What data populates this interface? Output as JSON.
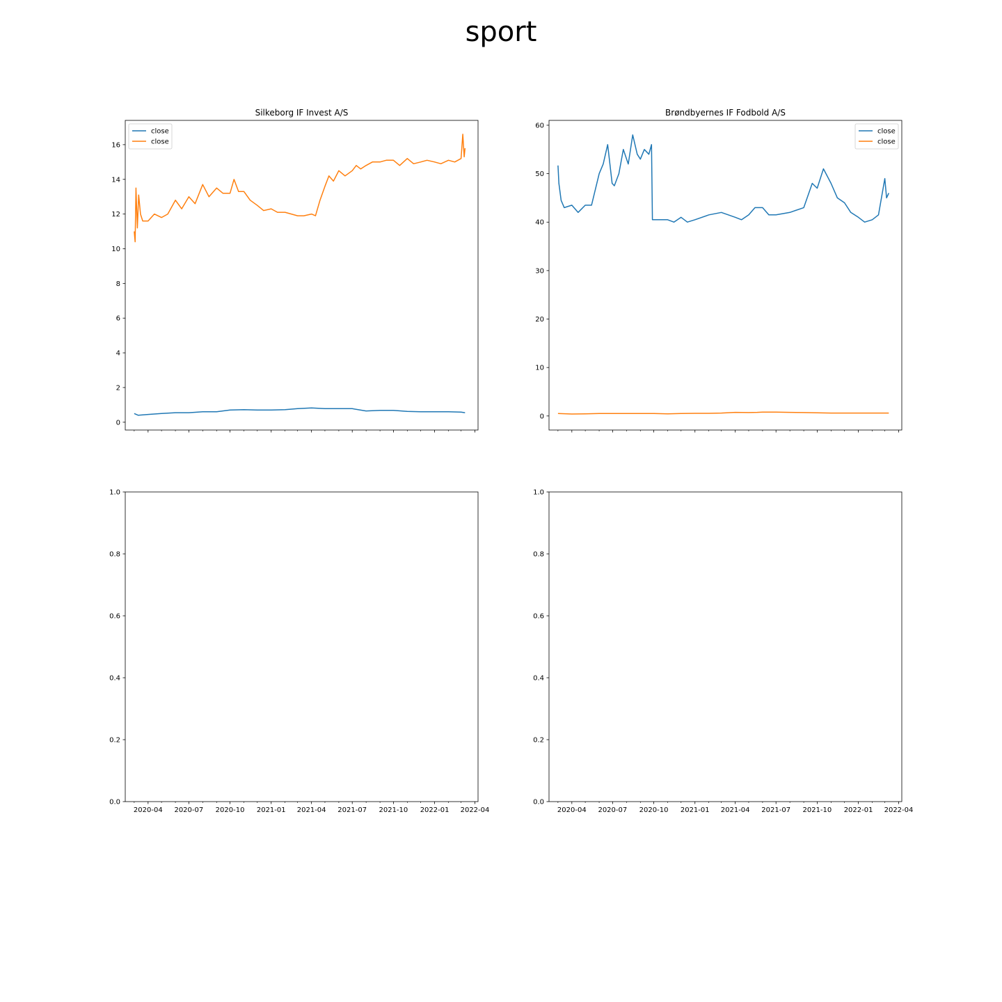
{
  "figure": {
    "title": "sport"
  },
  "colors": {
    "series_blue": "#1f77b4",
    "series_orange": "#ff7f0e"
  },
  "chart_data": [
    {
      "type": "line",
      "title": "Silkeborg IF Invest A/S",
      "legend": "top-left",
      "grid": false,
      "xlim": [
        "2020-02-10",
        "2022-04-08"
      ],
      "ylim": [
        -0.45,
        17.4
      ],
      "yticks": [
        0,
        2,
        4,
        6,
        8,
        10,
        12,
        14,
        16
      ],
      "show_xtick_labels": false,
      "series": [
        {
          "name": "close",
          "color": "#1f77b4",
          "x": [
            "2020-03-01",
            "2020-03-10",
            "2020-04-01",
            "2020-05-01",
            "2020-06-01",
            "2020-07-01",
            "2020-08-01",
            "2020-09-01",
            "2020-10-01",
            "2020-11-01",
            "2020-12-01",
            "2021-01-01",
            "2021-02-01",
            "2021-03-01",
            "2021-04-01",
            "2021-05-01",
            "2021-06-01",
            "2021-07-01",
            "2021-08-01",
            "2021-09-01",
            "2021-10-01",
            "2021-11-01",
            "2021-12-01",
            "2022-01-01",
            "2022-02-01",
            "2022-03-01",
            "2022-03-10"
          ],
          "y": [
            0.5,
            0.4,
            0.45,
            0.5,
            0.55,
            0.55,
            0.6,
            0.6,
            0.7,
            0.72,
            0.7,
            0.7,
            0.72,
            0.78,
            0.82,
            0.78,
            0.78,
            0.78,
            0.65,
            0.68,
            0.68,
            0.62,
            0.6,
            0.6,
            0.6,
            0.58,
            0.55
          ]
        },
        {
          "name": "close",
          "color": "#ff7f0e",
          "x": [
            "2020-03-01",
            "2020-03-03",
            "2020-03-05",
            "2020-03-08",
            "2020-03-11",
            "2020-03-15",
            "2020-03-20",
            "2020-04-01",
            "2020-04-15",
            "2020-05-01",
            "2020-05-15",
            "2020-06-01",
            "2020-06-15",
            "2020-07-01",
            "2020-07-15",
            "2020-08-01",
            "2020-08-15",
            "2020-09-01",
            "2020-09-15",
            "2020-10-01",
            "2020-10-10",
            "2020-10-20",
            "2020-11-01",
            "2020-11-15",
            "2020-12-01",
            "2020-12-15",
            "2021-01-01",
            "2021-01-15",
            "2021-02-01",
            "2021-02-15",
            "2021-03-01",
            "2021-03-15",
            "2021-04-01",
            "2021-04-10",
            "2021-04-20",
            "2021-05-01",
            "2021-05-10",
            "2021-05-20",
            "2021-06-01",
            "2021-06-15",
            "2021-07-01",
            "2021-07-10",
            "2021-07-20",
            "2021-08-01",
            "2021-08-15",
            "2021-09-01",
            "2021-09-15",
            "2021-10-01",
            "2021-10-15",
            "2021-11-01",
            "2021-11-15",
            "2021-12-01",
            "2021-12-15",
            "2022-01-01",
            "2022-01-15",
            "2022-02-01",
            "2022-02-15",
            "2022-03-01",
            "2022-03-05",
            "2022-03-08",
            "2022-03-10"
          ],
          "y": [
            11.0,
            10.4,
            13.5,
            11.2,
            13.1,
            12.0,
            11.6,
            11.6,
            12.0,
            11.8,
            12.0,
            12.8,
            12.3,
            13.0,
            12.6,
            13.7,
            13.0,
            13.5,
            13.2,
            13.2,
            14.0,
            13.3,
            13.3,
            12.8,
            12.5,
            12.2,
            12.3,
            12.1,
            12.1,
            12.0,
            11.9,
            11.9,
            12.0,
            11.9,
            12.8,
            13.6,
            14.2,
            13.9,
            14.5,
            14.2,
            14.5,
            14.8,
            14.6,
            14.8,
            15.0,
            15.0,
            15.1,
            15.1,
            14.8,
            15.2,
            14.9,
            15.0,
            15.1,
            15.0,
            14.9,
            15.1,
            15.0,
            15.2,
            16.6,
            15.3,
            15.8
          ]
        }
      ]
    },
    {
      "type": "line",
      "title": "Brøndbyernes IF Fodbold A/S",
      "legend": "top-right",
      "grid": false,
      "xlim": [
        "2020-02-10",
        "2022-04-08"
      ],
      "ylim": [
        -2.9,
        61.0
      ],
      "yticks": [
        0,
        10,
        20,
        30,
        40,
        50,
        60
      ],
      "show_xtick_labels": false,
      "series": [
        {
          "name": "close",
          "color": "#1f77b4",
          "x": [
            "2020-03-01",
            "2020-03-03",
            "2020-03-08",
            "2020-03-15",
            "2020-04-01",
            "2020-04-15",
            "2020-05-01",
            "2020-05-15",
            "2020-06-01",
            "2020-06-10",
            "2020-06-20",
            "2020-06-30",
            "2020-07-05",
            "2020-07-15",
            "2020-07-25",
            "2020-08-05",
            "2020-08-15",
            "2020-08-25",
            "2020-09-01",
            "2020-09-10",
            "2020-09-20",
            "2020-09-26",
            "2020-09-28",
            "2020-10-15",
            "2020-11-01",
            "2020-11-15",
            "2020-12-01",
            "2020-12-15",
            "2021-01-01",
            "2021-02-01",
            "2021-03-01",
            "2021-04-01",
            "2021-04-15",
            "2021-05-01",
            "2021-05-15",
            "2021-06-01",
            "2021-06-15",
            "2021-07-01",
            "2021-08-01",
            "2021-09-01",
            "2021-09-20",
            "2021-10-01",
            "2021-10-15",
            "2021-11-01",
            "2021-11-15",
            "2021-12-01",
            "2021-12-15",
            "2022-01-01",
            "2022-01-15",
            "2022-02-01",
            "2022-02-15",
            "2022-03-01",
            "2022-03-05",
            "2022-03-10"
          ],
          "y": [
            51.7,
            48.0,
            44.5,
            43.0,
            43.5,
            42.0,
            43.5,
            43.5,
            50.0,
            52.0,
            56.0,
            48.0,
            47.5,
            50.0,
            55.0,
            52.0,
            58.0,
            54.0,
            53.0,
            55.0,
            54.0,
            56.0,
            40.5,
            40.5,
            40.5,
            40.0,
            41.0,
            40.0,
            40.5,
            41.5,
            42.0,
            41.0,
            40.5,
            41.5,
            43.0,
            43.0,
            41.5,
            41.5,
            42.0,
            43.0,
            48.0,
            47.0,
            51.0,
            48.0,
            45.0,
            44.0,
            42.0,
            41.0,
            40.0,
            40.5,
            41.5,
            49.0,
            45.0,
            46.0
          ]
        },
        {
          "name": "close",
          "color": "#ff7f0e",
          "x": [
            "2020-03-01",
            "2020-04-01",
            "2020-05-01",
            "2020-06-01",
            "2020-07-01",
            "2020-08-01",
            "2020-09-01",
            "2020-10-01",
            "2020-11-01",
            "2020-12-01",
            "2021-01-01",
            "2021-02-01",
            "2021-03-01",
            "2021-04-01",
            "2021-05-01",
            "2021-05-20",
            "2021-06-01",
            "2021-07-01",
            "2021-08-01",
            "2021-09-01",
            "2021-10-01",
            "2021-11-01",
            "2021-12-01",
            "2022-01-01",
            "2022-02-01",
            "2022-03-10"
          ],
          "y": [
            0.5,
            0.4,
            0.45,
            0.5,
            0.5,
            0.5,
            0.5,
            0.5,
            0.45,
            0.5,
            0.55,
            0.55,
            0.6,
            0.75,
            0.7,
            0.75,
            0.8,
            0.8,
            0.75,
            0.7,
            0.65,
            0.6,
            0.6,
            0.6,
            0.6,
            0.6
          ]
        }
      ]
    },
    {
      "type": "line",
      "title": "",
      "grid": false,
      "xlim": [
        "2020-02-10",
        "2022-04-08"
      ],
      "ylim": [
        0,
        1
      ],
      "yticks": [
        0.0,
        0.2,
        0.4,
        0.6,
        0.8,
        1.0
      ],
      "ytick_labels": [
        "0.0",
        "0.2",
        "0.4",
        "0.6",
        "0.8",
        "1.0"
      ],
      "show_xtick_labels": true,
      "xticks": [
        "2020-04",
        "2020-07",
        "2020-10",
        "2021-01",
        "2021-04",
        "2021-07",
        "2021-10",
        "2022-01",
        "2022-04"
      ],
      "series": []
    },
    {
      "type": "line",
      "title": "",
      "grid": false,
      "xlim": [
        "2020-02-10",
        "2022-04-08"
      ],
      "ylim": [
        0,
        1
      ],
      "yticks": [
        0.0,
        0.2,
        0.4,
        0.6,
        0.8,
        1.0
      ],
      "ytick_labels": [
        "0.0",
        "0.2",
        "0.4",
        "0.6",
        "0.8",
        "1.0"
      ],
      "show_xtick_labels": true,
      "xticks": [
        "2020-04",
        "2020-07",
        "2020-10",
        "2021-01",
        "2021-04",
        "2021-07",
        "2021-10",
        "2022-01",
        "2022-04"
      ],
      "series": []
    }
  ]
}
